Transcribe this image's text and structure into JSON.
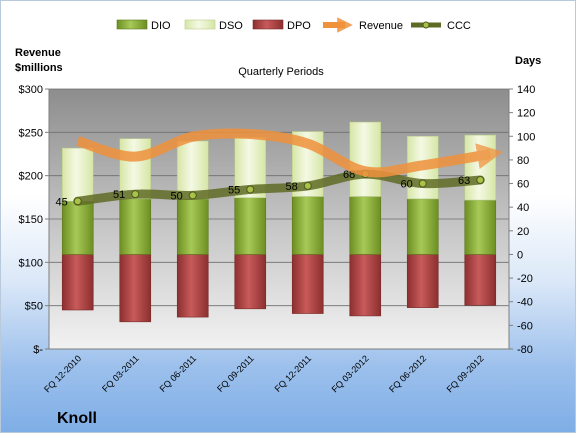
{
  "chart_data": {
    "type": "bar",
    "title": "Quarterly Periods",
    "company": "Knoll",
    "left_axis_label": "Revenue\n$millions",
    "right_axis_label": "Days",
    "categories": [
      "FQ 12-2010",
      "FQ 03-2011",
      "FQ 06-2011",
      "FQ 09-2011",
      "FQ 12-2011",
      "FQ 03-2012",
      "FQ 06-2012",
      "FQ 09-2012"
    ],
    "left_axis": {
      "min": 0,
      "max": 300,
      "step": 50,
      "tick_labels": [
        "$-",
        "$50",
        "$100",
        "$150",
        "$200",
        "$250",
        "$300"
      ]
    },
    "right_axis": {
      "min": -80,
      "max": 140,
      "step": 20
    },
    "series": [
      {
        "name": "DIO",
        "axis": "right",
        "values": [
          45,
          47,
          47,
          48,
          49,
          49,
          47,
          46
        ],
        "color": "#8fb33c"
      },
      {
        "name": "DSO",
        "axis": "right",
        "values": [
          45,
          51,
          49,
          51,
          55,
          63,
          53,
          55
        ],
        "color": "#e3efc4"
      },
      {
        "name": "DPO",
        "axis": "right",
        "values": [
          -47,
          -57,
          -53,
          -46,
          -50,
          -52,
          -45,
          -43
        ],
        "color": "#a84040"
      },
      {
        "name": "Revenue",
        "axis": "left",
        "values": [
          240,
          222,
          245,
          248,
          237,
          205,
          212,
          225
        ],
        "color": "#f0913c"
      },
      {
        "name": "CCC",
        "axis": "right",
        "values": [
          45,
          51,
          50,
          55,
          58,
          68,
          60,
          63
        ],
        "color": "#6f7d2e"
      }
    ],
    "legend_position": "top",
    "grid": true
  }
}
